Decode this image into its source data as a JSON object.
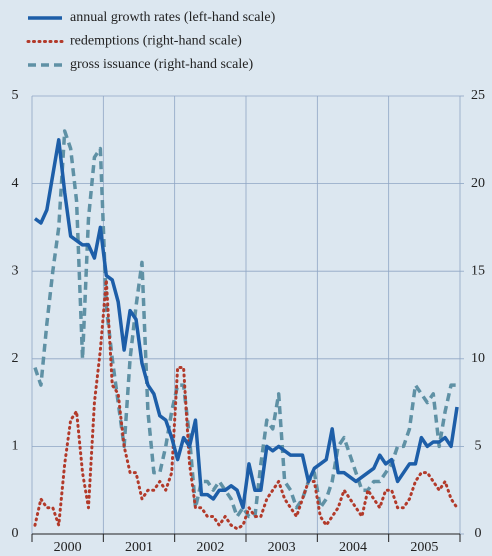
{
  "chart_data": {
    "type": "line",
    "categories": [
      null,
      null,
      null,
      null,
      null,
      null,
      "2000",
      null,
      null,
      null,
      null,
      null,
      null,
      null,
      null,
      null,
      null,
      null,
      "2001",
      null,
      null,
      null,
      null,
      null,
      null,
      null,
      null,
      null,
      null,
      null,
      "2002",
      null,
      null,
      null,
      null,
      null,
      null,
      null,
      null,
      null,
      null,
      null,
      "2003",
      null,
      null,
      null,
      null,
      null,
      null,
      null,
      null,
      null,
      null,
      null,
      "2004",
      null,
      null,
      null,
      null,
      null,
      null,
      null,
      null,
      null,
      null,
      null,
      "2005",
      null,
      null,
      null,
      null,
      null
    ],
    "series": [
      {
        "name": "annual growth rates (left-hand scale)",
        "color": "#1d5ea8",
        "style": "solid",
        "values": [
          3.6,
          3.55,
          3.7,
          4.1,
          4.5,
          3.9,
          3.4,
          3.35,
          3.3,
          3.3,
          3.15,
          3.5,
          2.95,
          2.9,
          2.65,
          2.1,
          2.55,
          2.45,
          1.95,
          1.7,
          1.6,
          1.35,
          1.3,
          1.1,
          0.85,
          1.1,
          1.0,
          1.3,
          0.45,
          0.45,
          0.4,
          0.5,
          0.5,
          0.55,
          0.5,
          0.3,
          0.8,
          0.5,
          0.5,
          1.0,
          0.95,
          1.0,
          0.95,
          0.9,
          0.9,
          0.9,
          0.6,
          0.75,
          0.8,
          0.85,
          1.2,
          0.7,
          0.7,
          0.65,
          0.6,
          0.65,
          0.7,
          0.75,
          0.9,
          0.8,
          0.85,
          0.6,
          0.7,
          0.8,
          0.8,
          1.1,
          1.0,
          1.05,
          1.05,
          1.1,
          1.0,
          1.45
        ]
      },
      {
        "name": "redemptions (right-hand scale)",
        "color": "#b23a2a",
        "style": "dotted",
        "axis": "y2",
        "values": [
          0.5,
          2,
          1.5,
          1.5,
          0.5,
          4,
          6.5,
          7,
          3.5,
          1.5,
          7.5,
          10.5,
          14.5,
          8.5,
          8,
          5,
          3.5,
          3.5,
          2,
          2.5,
          2.5,
          3,
          2.5,
          3.5,
          9.5,
          9.5,
          4,
          1.5,
          1.5,
          1,
          1,
          0.5,
          1,
          0.5,
          0.3,
          0.5,
          1.5,
          1,
          1,
          2,
          2.5,
          3,
          2,
          1.5,
          1,
          2,
          3,
          3,
          1,
          0.5,
          1,
          1.5,
          2.5,
          2,
          1.5,
          1,
          2.5,
          2,
          1.5,
          2.5,
          2.5,
          1.5,
          1.5,
          2,
          3,
          3.5,
          3.5,
          3,
          2.5,
          3,
          2,
          1.5
        ]
      },
      {
        "name": "gross issuance (right-hand scale)",
        "color": "#5f91a5",
        "style": "dashed",
        "axis": "y2",
        "values": [
          9.5,
          8.5,
          12,
          15,
          17.5,
          23,
          22,
          19,
          10,
          18,
          21.5,
          22,
          13,
          10,
          7.5,
          5,
          10,
          13,
          15.5,
          7,
          3.5,
          3.5,
          5,
          7,
          8.5,
          8.5,
          5.5,
          1.5,
          3,
          3,
          2.5,
          3,
          2.5,
          2,
          1,
          1.5,
          1,
          1,
          4,
          6.5,
          6,
          8,
          3,
          2.5,
          1.5,
          2,
          3,
          3.5,
          1.5,
          2,
          3,
          5,
          5.5,
          4.5,
          3.5,
          2.5,
          2.5,
          3,
          3,
          3.5,
          4,
          5,
          5,
          6,
          8.5,
          8,
          7.5,
          8,
          5,
          7,
          8.5,
          8.5
        ]
      }
    ],
    "ylim": [
      0,
      5
    ],
    "yticks": [
      0,
      1,
      2,
      3,
      4,
      5
    ],
    "y2lim": [
      0,
      25
    ],
    "y2ticks": [
      0,
      5,
      10,
      15,
      20,
      25
    ],
    "grid": true
  }
}
